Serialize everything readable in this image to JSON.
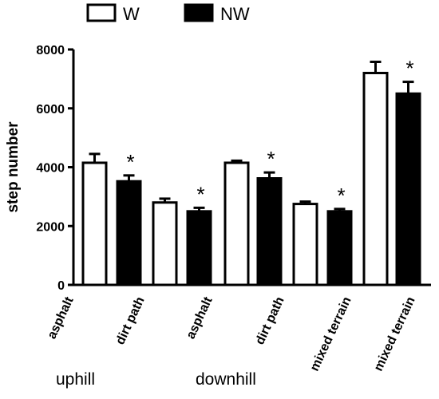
{
  "chart_data": {
    "type": "bar",
    "ylabel": "step number",
    "xlabel": "",
    "ylim": [
      0,
      8000
    ],
    "yticks": [
      0,
      2000,
      4000,
      6000,
      8000
    ],
    "grid": false,
    "legend_position": "top",
    "categories": [
      "asphalt",
      "dirt path",
      "asphalt",
      "dirt path",
      "mixed terrain",
      "mixed terrain"
    ],
    "groups": [
      {
        "label": "uphill"
      },
      {
        "label": "downhill"
      }
    ],
    "bars": [
      {
        "category_index": 0,
        "series": "W",
        "value": 4150,
        "error": 300
      },
      {
        "category_index": 0,
        "series": "NW",
        "value": 3520,
        "error": 200
      },
      {
        "category_index": 1,
        "series": "W",
        "value": 2800,
        "error": 130
      },
      {
        "category_index": 1,
        "series": "NW",
        "value": 2500,
        "error": 120
      },
      {
        "category_index": 2,
        "series": "W",
        "value": 4150,
        "error": 70
      },
      {
        "category_index": 2,
        "series": "NW",
        "value": 3620,
        "error": 200
      },
      {
        "category_index": 3,
        "series": "W",
        "value": 2750,
        "error": 80
      },
      {
        "category_index": 3,
        "series": "NW",
        "value": 2500,
        "error": 80
      },
      {
        "category_index": 4,
        "series": "W",
        "value": 7200,
        "error": 380
      },
      {
        "category_index": 5,
        "series": "NW",
        "value": 6500,
        "error": 400
      }
    ],
    "significance_mark": "*",
    "significant_bar_indices": [
      1,
      3,
      5,
      7,
      9
    ],
    "series": [
      {
        "name": "W",
        "color": "#ffffff"
      },
      {
        "name": "NW",
        "color": "#000000"
      }
    ]
  }
}
